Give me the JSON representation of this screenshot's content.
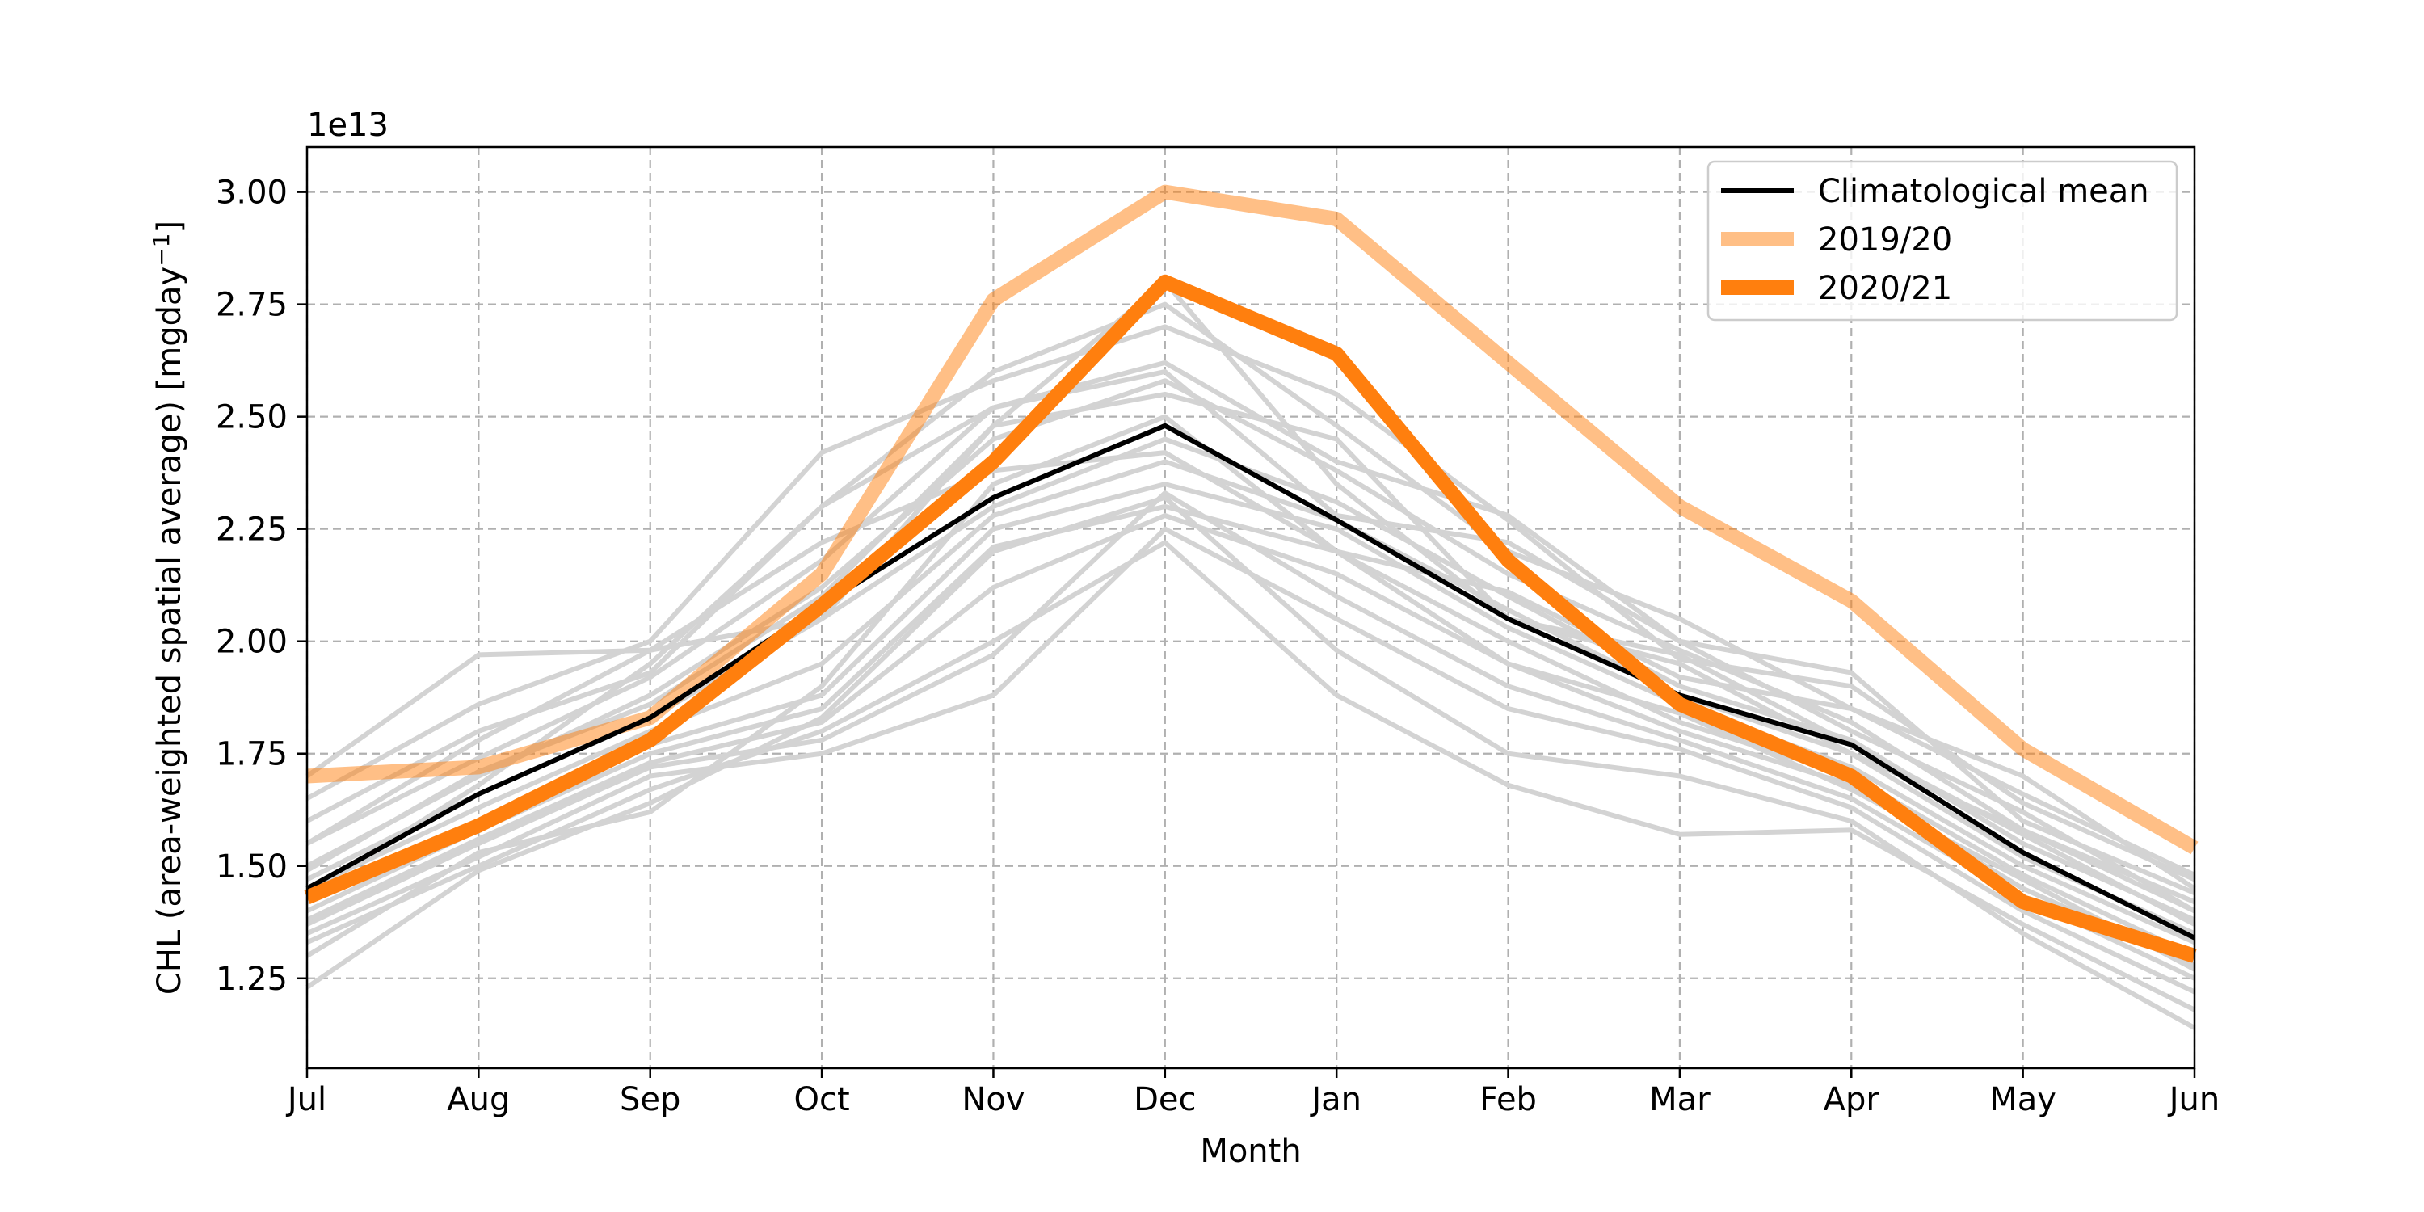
{
  "chart_data": {
    "type": "line",
    "categories": [
      "Jul",
      "Aug",
      "Sep",
      "Oct",
      "Nov",
      "Dec",
      "Jan",
      "Feb",
      "Mar",
      "Apr",
      "May",
      "Jun"
    ],
    "xlabel": "Month",
    "ylabel": "CHL (area-weighted spatial average) [mgday",
    "ylabel_superscript": "−1",
    "ylabel_close": "]",
    "offset_label": "1e13",
    "ylim": [
      1.05,
      3.1
    ],
    "yticks": [
      1.25,
      1.5,
      1.75,
      2.0,
      2.25,
      2.5,
      2.75,
      3.0
    ],
    "ytick_labels": [
      "1.25",
      "1.50",
      "1.75",
      "2.00",
      "2.25",
      "2.50",
      "2.75",
      "3.00"
    ],
    "grid": true,
    "legend_position": "top-right",
    "colors": {
      "background_years": "#d3d3d3",
      "climatology": "#000000",
      "year_2019_20": "#ff7f0e",
      "year_2020_21": "#ff7f0e"
    },
    "background_series": [
      [
        1.7,
        1.97,
        1.98,
        2.05,
        2.48,
        2.8,
        2.35,
        2.05,
        1.95,
        1.75,
        1.58,
        1.4
      ],
      [
        1.65,
        1.86,
        2.0,
        2.42,
        2.58,
        2.7,
        2.55,
        2.27,
        1.96,
        1.9,
        1.64,
        1.47
      ],
      [
        1.6,
        1.8,
        1.93,
        2.3,
        2.6,
        2.75,
        2.48,
        2.2,
        2.05,
        1.85,
        1.7,
        1.45
      ],
      [
        1.55,
        1.74,
        1.92,
        2.18,
        2.52,
        2.62,
        2.4,
        2.28,
        2.0,
        1.8,
        1.62,
        1.4
      ],
      [
        1.5,
        1.7,
        1.88,
        2.12,
        2.45,
        2.58,
        2.38,
        2.15,
        1.98,
        1.82,
        1.58,
        1.42
      ],
      [
        1.47,
        1.66,
        1.83,
        2.05,
        2.3,
        2.45,
        2.31,
        2.1,
        1.9,
        1.78,
        1.55,
        1.38
      ],
      [
        1.45,
        1.63,
        1.8,
        1.95,
        2.28,
        2.4,
        2.27,
        2.07,
        1.88,
        1.75,
        1.52,
        1.35
      ],
      [
        1.42,
        1.6,
        1.77,
        1.88,
        2.25,
        2.35,
        2.25,
        2.03,
        1.86,
        1.72,
        1.5,
        1.33
      ],
      [
        1.4,
        1.58,
        1.75,
        1.85,
        2.21,
        2.3,
        2.2,
        2.0,
        1.82,
        1.7,
        1.48,
        1.3
      ],
      [
        1.38,
        1.56,
        1.73,
        1.82,
        2.12,
        2.28,
        2.15,
        1.95,
        1.8,
        1.68,
        1.45,
        1.28
      ],
      [
        1.37,
        1.55,
        1.72,
        1.78,
        1.97,
        2.33,
        2.1,
        1.9,
        1.78,
        1.65,
        1.43,
        1.25
      ],
      [
        1.35,
        1.52,
        1.7,
        1.75,
        1.88,
        2.25,
        2.05,
        1.85,
        1.76,
        1.63,
        1.4,
        1.22
      ],
      [
        1.33,
        1.5,
        1.67,
        1.8,
        2.0,
        2.22,
        1.88,
        1.68,
        1.57,
        1.58,
        1.37,
        1.18
      ],
      [
        1.23,
        1.49,
        1.64,
        1.83,
        2.2,
        2.32,
        1.98,
        1.75,
        1.7,
        1.6,
        1.35,
        1.14
      ],
      [
        1.3,
        1.53,
        1.62,
        1.9,
        2.35,
        2.5,
        2.2,
        1.95,
        1.84,
        1.67,
        1.47,
        1.27
      ],
      [
        1.44,
        1.68,
        1.95,
        2.3,
        2.52,
        2.6,
        2.28,
        2.22,
        2.0,
        1.93,
        1.6,
        1.44
      ],
      [
        1.55,
        1.78,
        1.98,
        2.22,
        2.38,
        2.42,
        2.2,
        2.11,
        1.92,
        1.85,
        1.66,
        1.48
      ],
      [
        1.49,
        1.71,
        1.86,
        2.1,
        2.48,
        2.55,
        2.45,
        2.05,
        1.97,
        1.77,
        1.57,
        1.37
      ]
    ],
    "series": [
      {
        "name": "Climatological mean",
        "values": [
          1.45,
          1.66,
          1.83,
          2.08,
          2.32,
          2.48,
          2.27,
          2.05,
          1.88,
          1.77,
          1.53,
          1.34
        ]
      },
      {
        "name": "2019/20",
        "values": [
          1.7,
          1.72,
          1.83,
          2.15,
          2.76,
          3.0,
          2.94,
          2.62,
          2.3,
          2.09,
          1.76,
          1.54
        ]
      },
      {
        "name": "2020/21",
        "values": [
          1.43,
          1.59,
          1.78,
          2.08,
          2.4,
          2.8,
          2.64,
          2.18,
          1.86,
          1.7,
          1.42,
          1.3
        ]
      }
    ]
  }
}
